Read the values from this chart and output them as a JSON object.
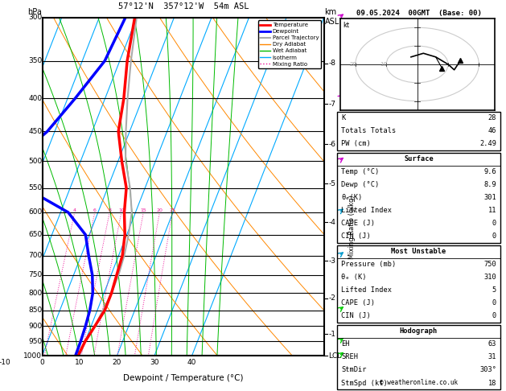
{
  "title_left": "57°12'N  357°12'W  54m ASL",
  "title_right": "09.05.2024  00GMT  (Base: 00)",
  "xlabel": "Dewpoint / Temperature (°C)",
  "pressure_levels": [
    300,
    350,
    400,
    450,
    500,
    550,
    600,
    650,
    700,
    750,
    800,
    850,
    900,
    950,
    1000
  ],
  "p_min": 300,
  "p_max": 1000,
  "t_min": -35,
  "t_max": 40,
  "skew_deg": 45,
  "iso_color": "#00aaff",
  "dry_color": "#ff8800",
  "wet_color": "#00bb00",
  "mr_color": "#ee1199",
  "mr_values": [
    1,
    2,
    4,
    6,
    8,
    10,
    15,
    20,
    25
  ],
  "temp_t": [
    -10.5,
    -8.0,
    -5.0,
    -3.0,
    1.0,
    5.0,
    7.0,
    9.5,
    11.0,
    11.5,
    12.0,
    12.0,
    11.0,
    10.0,
    9.6
  ],
  "temp_p": [
    300,
    350,
    400,
    450,
    500,
    550,
    600,
    650,
    700,
    750,
    800,
    850,
    900,
    950,
    1000
  ],
  "dewp_t": [
    -13.0,
    -14.0,
    -18.0,
    -22.0,
    -28.0,
    -22.0,
    -8.0,
    -1.0,
    2.0,
    5.0,
    7.0,
    8.0,
    8.5,
    8.8,
    8.9
  ],
  "dewp_p": [
    300,
    350,
    400,
    450,
    500,
    550,
    600,
    650,
    700,
    750,
    800,
    850,
    900,
    950,
    1000
  ],
  "parcel_t": [
    -10.0,
    -7.0,
    -4.0,
    -1.0,
    2.0,
    6.0,
    9.0,
    10.5,
    11.5,
    12.0,
    12.0,
    11.5,
    11.0,
    10.0,
    9.6
  ],
  "parcel_p": [
    300,
    350,
    400,
    450,
    500,
    550,
    600,
    650,
    700,
    750,
    800,
    850,
    900,
    950,
    1000
  ],
  "temp_color": "#ff0000",
  "dewp_color": "#0000ff",
  "parcel_color": "#aaaaaa",
  "km_ticks": [
    8,
    7,
    6,
    5,
    4,
    3,
    2,
    1
  ],
  "km_p": [
    353,
    408,
    471,
    542,
    622,
    713,
    815,
    925
  ],
  "K": 28,
  "TT": 46,
  "PW": 2.49,
  "sfc_T": 9.6,
  "sfc_Td": 8.9,
  "sfc_the": 301,
  "sfc_LI": 11,
  "sfc_CAPE": 0,
  "sfc_CIN": 0,
  "mu_P": 750,
  "mu_the": 310,
  "mu_LI": 5,
  "mu_CAPE": 0,
  "mu_CIN": 0,
  "EH": 63,
  "SREH": 31,
  "StmDir": "303°",
  "StmSpd": 18,
  "wind_p": [
    300,
    400,
    500,
    600,
    700,
    850,
    950,
    1000
  ],
  "wind_spd": [
    30,
    25,
    20,
    15,
    12,
    10,
    7,
    5
  ],
  "wind_dir": [
    275,
    270,
    265,
    255,
    245,
    235,
    220,
    210
  ],
  "wbarb_colors": [
    "#cc00cc",
    "#cc00cc",
    "#cc00cc",
    "#0099cc",
    "#0099cc",
    "#00cc00",
    "#00cc00",
    "#00cc00"
  ]
}
